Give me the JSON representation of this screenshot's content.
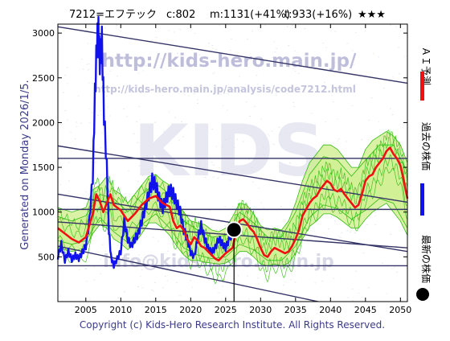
{
  "header": {
    "code_name": "7212=エフテック",
    "current": "c:802",
    "mid": "m:1131(+41%)",
    "target": "t:933(+16%)",
    "stars": "★★★"
  },
  "side": {
    "generated": "Generated on Monday 2026/1/5.",
    "legend_ai": "ＡＩ予測",
    "legend_past": "過去の株価",
    "legend_latest": "最新の株価"
  },
  "watermark": {
    "url1": "http://kids-hero.main.jp/",
    "url2": "http://kids-hero.main.jp/analysis/code7212.html",
    "big": "KIDS",
    "mail": "info@kids-hero.main.jp"
  },
  "footer": {
    "copyright": "Copyright (c) Kids-Hero Research Institute. All Rights Reserved."
  },
  "colors": {
    "ai": "#ee1111",
    "past": "#1111ee",
    "band_fill": "#ccee88",
    "band_line": "#33bb11",
    "channel": "#333366",
    "latest": "#000000"
  },
  "chart_data": {
    "type": "line",
    "title": "7212=エフテック",
    "xlim": [
      2001,
      2051
    ],
    "ylim": [
      0,
      3100
    ],
    "x_ticks": [
      "2005",
      "2010",
      "2015",
      "2020",
      "2025",
      "2030",
      "2035",
      "2040",
      "2045",
      "2050"
    ],
    "y_ticks": [
      "500",
      "1000",
      "1500",
      "2000",
      "2500",
      "3000"
    ],
    "grid": false,
    "legend": "right side, vertical",
    "latest_point": {
      "year": 2026.2,
      "price": 802
    },
    "horizontal_lines": [
      1600,
      1030,
      400
    ],
    "channel_lines": [
      {
        "x1": 2001,
        "y1": 3070,
        "x2": 2051,
        "y2": 2440
      },
      {
        "x1": 2001,
        "y1": 1740,
        "x2": 2051,
        "y2": 1110
      },
      {
        "x1": 2001,
        "y1": 1200,
        "x2": 2051,
        "y2": 560
      },
      {
        "x1": 2001,
        "y1": 890,
        "x2": 2051,
        "y2": 600
      },
      {
        "x1": 2001,
        "y1": 620,
        "x2": 2040,
        "y2": -30
      }
    ],
    "series": [
      {
        "name": "過去の株価",
        "points": [
          [
            2001,
            500
          ],
          [
            2001.5,
            640
          ],
          [
            2002,
            460
          ],
          [
            2002.5,
            560
          ],
          [
            2003,
            470
          ],
          [
            2003.5,
            520
          ],
          [
            2004,
            480
          ],
          [
            2004.5,
            550
          ],
          [
            2005,
            620
          ],
          [
            2005.5,
            900
          ],
          [
            2006,
            1400
          ],
          [
            2006.3,
            2300
          ],
          [
            2006.6,
            2900
          ],
          [
            2006.8,
            3000
          ],
          [
            2007,
            2700
          ],
          [
            2007.3,
            2900
          ],
          [
            2007.6,
            2100
          ],
          [
            2008,
            1500
          ],
          [
            2008.3,
            800
          ],
          [
            2008.6,
            500
          ],
          [
            2009,
            400
          ],
          [
            2009.5,
            480
          ],
          [
            2010,
            560
          ],
          [
            2010.5,
            900
          ],
          [
            2011,
            700
          ],
          [
            2011.5,
            620
          ],
          [
            2012,
            700
          ],
          [
            2012.5,
            760
          ],
          [
            2013,
            900
          ],
          [
            2013.5,
            1050
          ],
          [
            2014,
            1200
          ],
          [
            2014.5,
            1350
          ],
          [
            2015,
            1300
          ],
          [
            2015.5,
            1150
          ],
          [
            2016,
            1050
          ],
          [
            2016.5,
            1150
          ],
          [
            2017,
            1250
          ],
          [
            2017.5,
            1200
          ],
          [
            2018,
            1100
          ],
          [
            2018.5,
            1000
          ],
          [
            2019,
            800
          ],
          [
            2019.5,
            700
          ],
          [
            2020,
            550
          ],
          [
            2020.5,
            500
          ],
          [
            2021,
            700
          ],
          [
            2021.5,
            850
          ],
          [
            2022,
            700
          ],
          [
            2022.5,
            600
          ],
          [
            2023,
            550
          ],
          [
            2023.5,
            600
          ],
          [
            2024,
            700
          ],
          [
            2024.5,
            650
          ],
          [
            2025,
            600
          ],
          [
            2025.5,
            700
          ],
          [
            2026.2,
            802
          ]
        ]
      },
      {
        "name": "ＡＩ予測",
        "points": [
          [
            2001,
            820
          ],
          [
            2002,
            760
          ],
          [
            2003,
            700
          ],
          [
            2004,
            660
          ],
          [
            2005,
            720
          ],
          [
            2006,
            980
          ],
          [
            2006.5,
            1200
          ],
          [
            2007,
            1120
          ],
          [
            2007.5,
            1000
          ],
          [
            2008,
            1100
          ],
          [
            2008.5,
            1200
          ],
          [
            2009,
            1080
          ],
          [
            2010,
            1020
          ],
          [
            2011,
            900
          ],
          [
            2012,
            980
          ],
          [
            2013,
            1080
          ],
          [
            2014,
            1150
          ],
          [
            2015,
            1180
          ],
          [
            2016,
            1100
          ],
          [
            2017,
            1060
          ],
          [
            2017.5,
            900
          ],
          [
            2018,
            820
          ],
          [
            2018.5,
            850
          ],
          [
            2019,
            800
          ],
          [
            2019.5,
            700
          ],
          [
            2020,
            640
          ],
          [
            2020.5,
            720
          ],
          [
            2021,
            680
          ],
          [
            2021.5,
            620
          ],
          [
            2022,
            600
          ],
          [
            2022.5,
            560
          ],
          [
            2023,
            520
          ],
          [
            2023.5,
            480
          ],
          [
            2024,
            460
          ],
          [
            2024.5,
            500
          ],
          [
            2025,
            540
          ],
          [
            2026,
            600
          ],
          [
            2026.5,
            800
          ],
          [
            2027,
            900
          ],
          [
            2027.5,
            920
          ],
          [
            2028,
            880
          ],
          [
            2028.5,
            820
          ],
          [
            2029,
            780
          ],
          [
            2029.5,
            700
          ],
          [
            2030,
            600
          ],
          [
            2030.5,
            520
          ],
          [
            2031,
            500
          ],
          [
            2031.5,
            560
          ],
          [
            2032,
            600
          ],
          [
            2032.5,
            580
          ],
          [
            2033,
            560
          ],
          [
            2033.5,
            540
          ],
          [
            2034,
            560
          ],
          [
            2034.5,
            620
          ],
          [
            2035,
            700
          ],
          [
            2035.5,
            800
          ],
          [
            2036,
            960
          ],
          [
            2036.5,
            1030
          ],
          [
            2037,
            1100
          ],
          [
            2037.5,
            1150
          ],
          [
            2038,
            1180
          ],
          [
            2038.5,
            1250
          ],
          [
            2039,
            1300
          ],
          [
            2039.5,
            1350
          ],
          [
            2040,
            1320
          ],
          [
            2040.5,
            1250
          ],
          [
            2041,
            1230
          ],
          [
            2041.5,
            1260
          ],
          [
            2042,
            1200
          ],
          [
            2042.5,
            1150
          ],
          [
            2043,
            1100
          ],
          [
            2043.5,
            1050
          ],
          [
            2044,
            1080
          ],
          [
            2044.5,
            1200
          ],
          [
            2045,
            1350
          ],
          [
            2045.5,
            1400
          ],
          [
            2046,
            1420
          ],
          [
            2046.5,
            1500
          ],
          [
            2047,
            1550
          ],
          [
            2047.5,
            1600
          ],
          [
            2048,
            1680
          ],
          [
            2048.5,
            1720
          ],
          [
            2049,
            1650
          ],
          [
            2049.5,
            1600
          ],
          [
            2050,
            1520
          ],
          [
            2050.5,
            1350
          ],
          [
            2051,
            1150
          ]
        ]
      }
    ],
    "bands": [
      {
        "points": [
          [
            2001,
            1050,
            600
          ],
          [
            2003,
            1000,
            560
          ],
          [
            2005,
            1050,
            600
          ],
          [
            2006,
            1250,
            760
          ],
          [
            2007,
            1300,
            860
          ],
          [
            2008,
            1400,
            820
          ],
          [
            2009,
            1250,
            700
          ],
          [
            2010,
            1200,
            650
          ],
          [
            2011,
            1100,
            580
          ],
          [
            2012,
            1200,
            650
          ],
          [
            2013,
            1300,
            760
          ],
          [
            2014,
            1400,
            880
          ],
          [
            2015,
            1420,
            880
          ],
          [
            2016,
            1350,
            820
          ],
          [
            2017,
            1300,
            740
          ],
          [
            2018,
            1100,
            620
          ],
          [
            2019,
            1000,
            520
          ],
          [
            2020,
            900,
            460
          ],
          [
            2021,
            880,
            460
          ],
          [
            2022,
            860,
            440
          ],
          [
            2023,
            800,
            430
          ],
          [
            2024,
            780,
            420
          ],
          [
            2025,
            820,
            430
          ],
          [
            2026,
            950,
            480
          ],
          [
            2027,
            1100,
            560
          ],
          [
            2028,
            1080,
            560
          ],
          [
            2029,
            980,
            500
          ],
          [
            2030,
            850,
            420
          ],
          [
            2031,
            800,
            400
          ],
          [
            2032,
            820,
            420
          ],
          [
            2033,
            800,
            400
          ],
          [
            2034,
            900,
            430
          ],
          [
            2035,
            1100,
            540
          ],
          [
            2036,
            1350,
            700
          ],
          [
            2037,
            1550,
            840
          ],
          [
            2038,
            1650,
            900
          ],
          [
            2039,
            1750,
            980
          ],
          [
            2040,
            1750,
            980
          ],
          [
            2041,
            1700,
            940
          ],
          [
            2042,
            1600,
            880
          ],
          [
            2043,
            1500,
            820
          ],
          [
            2044,
            1500,
            820
          ],
          [
            2045,
            1700,
            920
          ],
          [
            2046,
            1800,
            1000
          ],
          [
            2047,
            1850,
            1050
          ],
          [
            2048,
            1900,
            1100
          ],
          [
            2049,
            1850,
            1000
          ],
          [
            2050,
            1750,
            900
          ],
          [
            2051,
            1550,
            740
          ]
        ]
      },
      {
        "points": [
          [
            2001,
            950,
            680
          ],
          [
            2003,
            900,
            640
          ],
          [
            2005,
            960,
            680
          ],
          [
            2007,
            1200,
            940
          ],
          [
            2009,
            1150,
            780
          ],
          [
            2011,
            1000,
            660
          ],
          [
            2013,
            1200,
            860
          ],
          [
            2015,
            1320,
            980
          ],
          [
            2017,
            1200,
            820
          ],
          [
            2019,
            900,
            600
          ],
          [
            2021,
            800,
            520
          ],
          [
            2023,
            720,
            480
          ],
          [
            2025,
            740,
            500
          ],
          [
            2027,
            1000,
            640
          ],
          [
            2029,
            880,
            580
          ],
          [
            2031,
            720,
            460
          ],
          [
            2033,
            720,
            460
          ],
          [
            2035,
            1000,
            620
          ],
          [
            2037,
            1420,
            940
          ],
          [
            2039,
            1620,
            1080
          ],
          [
            2041,
            1580,
            1040
          ],
          [
            2043,
            1400,
            920
          ],
          [
            2045,
            1580,
            1020
          ],
          [
            2047,
            1750,
            1150
          ],
          [
            2049,
            1750,
            1100
          ],
          [
            2051,
            1450,
            820
          ]
        ]
      }
    ]
  }
}
